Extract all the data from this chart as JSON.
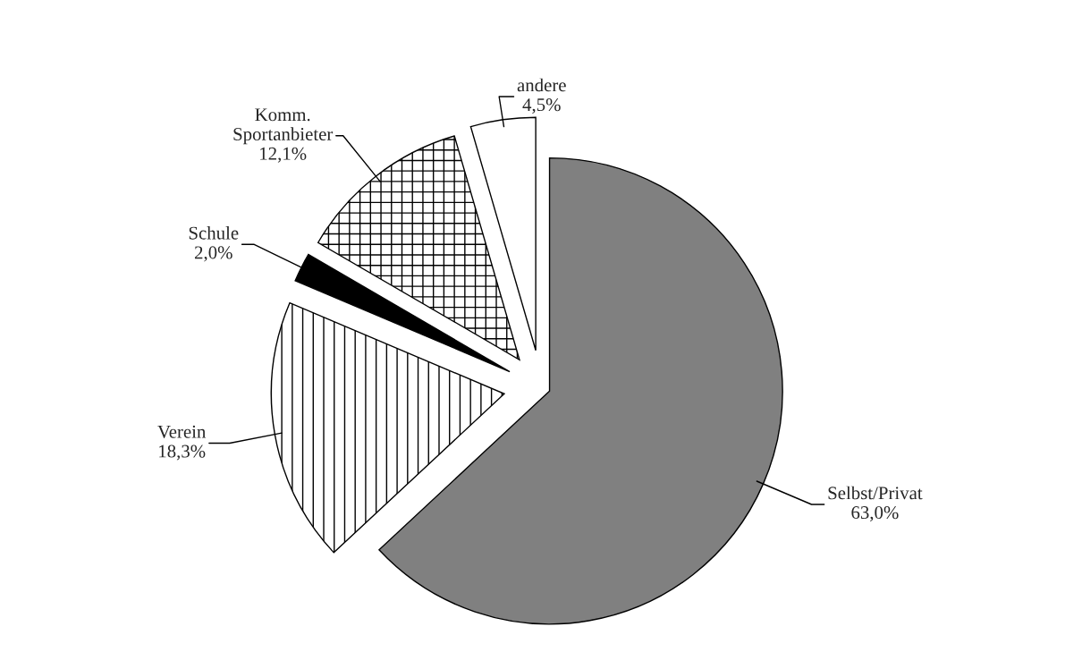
{
  "chart_data": {
    "type": "pie",
    "categories": [
      "Selbst/Privat",
      "Verein",
      "Schule",
      "Komm.\nSportanbieter",
      "andere"
    ],
    "values": [
      63.0,
      18.3,
      2.0,
      12.1,
      4.5
    ],
    "colors": [
      "#808080",
      "#ffffff",
      "#000000",
      "#ffffff",
      "#ffffff"
    ],
    "value_labels": [
      "63,0%",
      "18,3%",
      "2,0%",
      "12,1%",
      "4,5%"
    ]
  }
}
